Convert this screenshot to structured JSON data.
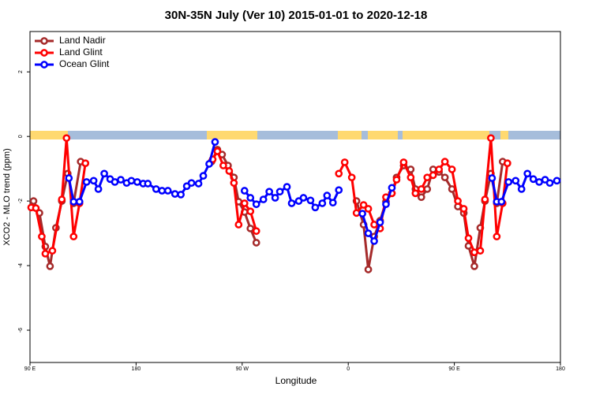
{
  "chart_data": {
    "type": "line",
    "title": "30N-35N July (Ver 10)   2015-01-01 to 2020-12-18",
    "x_label": "Longitude",
    "y_label": "XCO2 - MLO trend (ppm)",
    "xlim": [
      90,
      540
    ],
    "ylim": [
      -7,
      3.25
    ],
    "xticks": [
      {
        "value": 90,
        "label": "90 E"
      },
      180,
      {
        "value": 270,
        "label": "90 W"
      },
      {
        "value": 360,
        "label": "0"
      },
      {
        "value": 450,
        "label": "90 E"
      },
      {
        "value": 540,
        "label": "180"
      }
    ],
    "yticks": [
      -6,
      -4,
      -2,
      0,
      2
    ],
    "legend": "upper left",
    "series": [
      {
        "name": "Land Nadir",
        "color": "#a52a2a",
        "x": [
          93,
          98,
          103,
          107,
          112,
          117,
          122,
          127,
          133,
          137,
          null,
          244,
          249,
          253,
          258,
          263,
          267,
          272,
          277,
          282,
          null,
          367,
          373,
          377,
          382,
          387,
          392,
          397,
          401,
          407,
          413,
          417,
          422,
          427,
          432,
          437,
          442,
          448,
          453,
          458,
          462,
          467,
          472,
          476,
          481,
          486,
          491,
          495
        ],
        "values": [
          -2.0,
          -2.37,
          -3.41,
          -4.02,
          -2.83,
          -2.0,
          -1.15,
          -2.07,
          -0.78,
          -0.83,
          null,
          -0.78,
          -0.41,
          -0.56,
          -0.9,
          -1.27,
          -2.02,
          -2.34,
          -2.85,
          -3.29,
          null,
          -2.0,
          -2.73,
          -4.12,
          -3.1,
          -2.61,
          -2.02,
          -1.76,
          -1.27,
          -0.9,
          -1.02,
          -1.63,
          -1.88,
          -1.63,
          -1.02,
          -1.1,
          -1.27,
          -1.63,
          -2.17,
          -2.37,
          -3.39,
          -4.02,
          -2.83,
          -2.0,
          -1.15,
          -2.07,
          -0.78,
          -0.83
        ]
      },
      {
        "name": "Land Glint",
        "color": "#ff0000",
        "x": [
          91,
          95,
          100,
          103,
          109,
          117,
          121,
          127,
          132,
          137,
          null,
          245,
          249,
          254,
          259,
          263,
          267,
          272,
          277,
          282,
          null,
          352,
          357,
          363,
          367,
          373,
          377,
          382,
          387,
          392,
          397,
          401,
          407,
          413,
          417,
          422,
          427,
          432,
          437,
          442,
          448,
          453,
          458,
          462,
          467,
          472,
          476,
          481,
          486,
          491,
          495
        ],
        "values": [
          -2.2,
          -2.22,
          -3.1,
          -3.63,
          -3.54,
          -1.95,
          -0.05,
          -3.1,
          -2.07,
          -0.83,
          null,
          -0.71,
          -0.46,
          -0.9,
          -1.07,
          -1.44,
          -2.73,
          -2.07,
          -2.32,
          -2.93,
          null,
          -1.15,
          -0.8,
          -1.27,
          -2.37,
          -2.12,
          -2.24,
          -2.73,
          -2.85,
          -1.88,
          -1.76,
          -1.34,
          -0.8,
          -1.27,
          -1.76,
          -1.63,
          -1.27,
          -1.2,
          -1.02,
          -0.78,
          -1.02,
          -2.0,
          -2.24,
          -3.15,
          -3.59,
          -3.54,
          -1.95,
          -0.05,
          -3.1,
          -2.07,
          -0.83
        ]
      },
      {
        "name": "Ocean Glint",
        "color": "#0000ff",
        "x": [
          123,
          127,
          132,
          138,
          144,
          148,
          153,
          158,
          162,
          167,
          172,
          176,
          181,
          186,
          190,
          197,
          202,
          207,
          213,
          218,
          223,
          227,
          233,
          237,
          242,
          247,
          null,
          272,
          277,
          282,
          288,
          293,
          298,
          302,
          308,
          312,
          318,
          322,
          328,
          332,
          338,
          342,
          347,
          352,
          null,
          372,
          377,
          382,
          387,
          392,
          397,
          null,
          482,
          486,
          490,
          496,
          502,
          507,
          512,
          517,
          522,
          527,
          531,
          537
        ],
        "values": [
          -1.29,
          -2.02,
          -2.02,
          -1.41,
          -1.37,
          -1.63,
          -1.15,
          -1.32,
          -1.41,
          -1.34,
          -1.44,
          -1.37,
          -1.41,
          -1.46,
          -1.46,
          -1.63,
          -1.68,
          -1.68,
          -1.78,
          -1.8,
          -1.54,
          -1.44,
          -1.46,
          -1.22,
          -0.85,
          -0.17,
          null,
          -1.68,
          -1.9,
          -2.1,
          -1.95,
          -1.71,
          -1.9,
          -1.71,
          -1.56,
          -2.07,
          -2.0,
          -1.9,
          -1.98,
          -2.2,
          -2.07,
          -1.83,
          -2.05,
          -1.66,
          null,
          -2.39,
          -3.0,
          -3.24,
          -2.66,
          -2.1,
          -1.59,
          null,
          -1.29,
          -2.02,
          -2.02,
          -1.41,
          -1.37,
          -1.63,
          -1.15,
          -1.32,
          -1.41,
          -1.34,
          -1.44,
          -1.37
        ]
      }
    ]
  }
}
